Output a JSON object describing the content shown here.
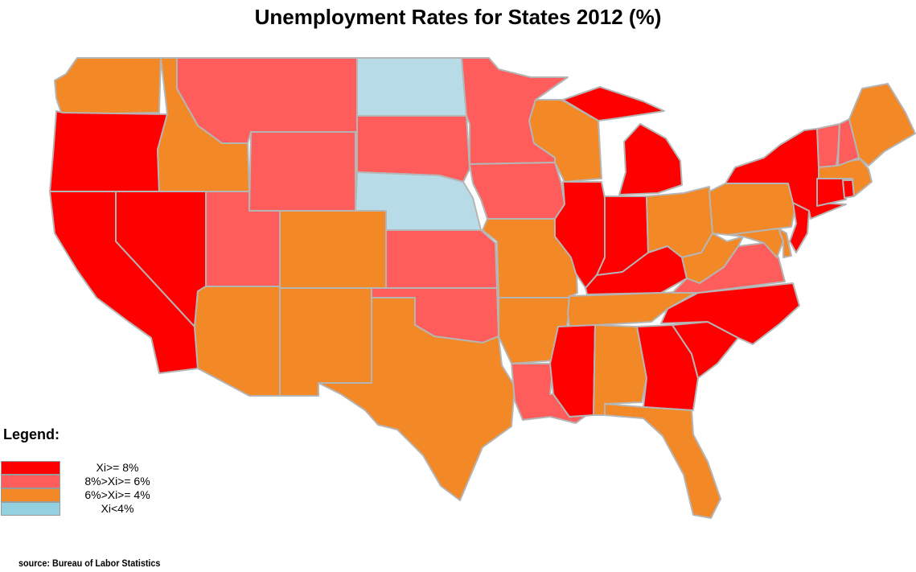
{
  "title": "Unemployment Rates for States 2012 (%)",
  "legend": {
    "title": "Legend:",
    "items": [
      {
        "label": "Xi>= 8%",
        "color": "#ff0000"
      },
      {
        "label": "8%>Xi>= 6%",
        "color": "#ff5c5c"
      },
      {
        "label": "6%>Xi>= 4%",
        "color": "#f28826"
      },
      {
        "label": "Xi<4%",
        "color": "#93d0e0"
      }
    ]
  },
  "source": "source: Bureau of Labor Statistics",
  "colors": {
    "band1": "#ff0000",
    "band2": "#ff5c5c",
    "band3": "#f28826",
    "band4": "#b8dce7",
    "border": "#b5b5b5"
  },
  "states": [
    {
      "id": "WA",
      "band": 3
    },
    {
      "id": "OR",
      "band": 1
    },
    {
      "id": "CA",
      "band": 1
    },
    {
      "id": "NV",
      "band": 1
    },
    {
      "id": "ID",
      "band": 3
    },
    {
      "id": "MT",
      "band": 2
    },
    {
      "id": "WY",
      "band": 2
    },
    {
      "id": "UT",
      "band": 2
    },
    {
      "id": "AZ",
      "band": 3
    },
    {
      "id": "CO",
      "band": 3
    },
    {
      "id": "NM",
      "band": 3
    },
    {
      "id": "ND",
      "band": 4
    },
    {
      "id": "SD",
      "band": 2
    },
    {
      "id": "NE",
      "band": 4
    },
    {
      "id": "KS",
      "band": 2
    },
    {
      "id": "OK",
      "band": 2
    },
    {
      "id": "TX",
      "band": 3
    },
    {
      "id": "MN",
      "band": 2
    },
    {
      "id": "IA",
      "band": 2
    },
    {
      "id": "MO",
      "band": 3
    },
    {
      "id": "AR",
      "band": 3
    },
    {
      "id": "LA",
      "band": 2
    },
    {
      "id": "WI",
      "band": 3
    },
    {
      "id": "IL",
      "band": 1
    },
    {
      "id": "MI",
      "band": 1
    },
    {
      "id": "IN",
      "band": 1
    },
    {
      "id": "OH",
      "band": 3
    },
    {
      "id": "KY",
      "band": 1
    },
    {
      "id": "TN",
      "band": 3
    },
    {
      "id": "MS",
      "band": 1
    },
    {
      "id": "AL",
      "band": 3
    },
    {
      "id": "GA",
      "band": 1
    },
    {
      "id": "FL",
      "band": 3
    },
    {
      "id": "SC",
      "band": 1
    },
    {
      "id": "NC",
      "band": 1
    },
    {
      "id": "VA",
      "band": 2
    },
    {
      "id": "WV",
      "band": 3
    },
    {
      "id": "PA",
      "band": 3
    },
    {
      "id": "NY",
      "band": 1
    },
    {
      "id": "VT",
      "band": 2
    },
    {
      "id": "NH",
      "band": 2
    },
    {
      "id": "ME",
      "band": 3
    },
    {
      "id": "MA",
      "band": 3
    },
    {
      "id": "CT",
      "band": 1
    },
    {
      "id": "RI",
      "band": 1
    },
    {
      "id": "NJ",
      "band": 1
    },
    {
      "id": "DE",
      "band": 3
    },
    {
      "id": "MD",
      "band": 3
    }
  ]
}
